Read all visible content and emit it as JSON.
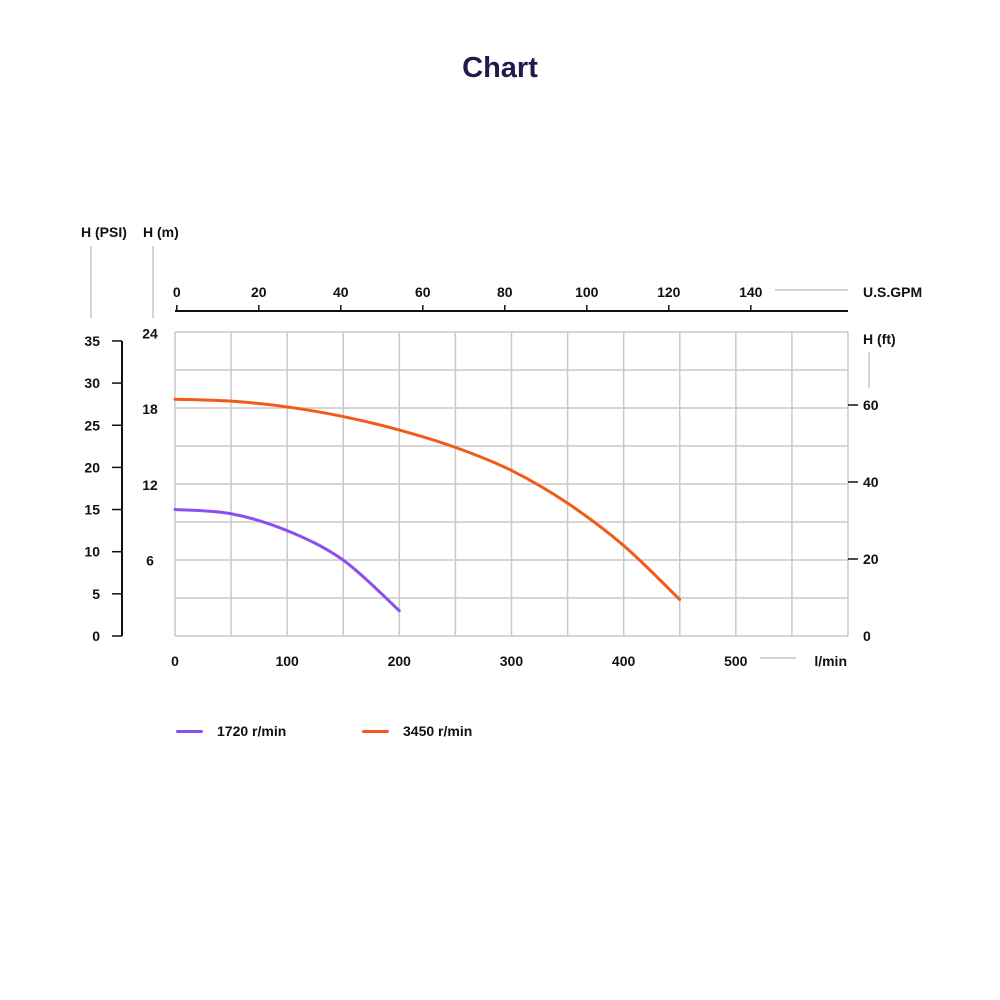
{
  "title": "Chart",
  "colors": {
    "series_1720": "#8b4ff0",
    "series_3450": "#f25a19",
    "grid": "#c9c9c9",
    "axis": "#111111",
    "title": "#1f1b4d"
  },
  "chart_data": {
    "type": "line",
    "title": "Chart",
    "x_axis": {
      "label": "l/min",
      "range": [
        0,
        600
      ],
      "ticks": [
        0,
        100,
        200,
        300,
        400,
        500
      ]
    },
    "x_axis_top": {
      "label": "U.S.GPM",
      "ticks": [
        0,
        20,
        40,
        60,
        80,
        100,
        120,
        140
      ]
    },
    "y_axis_psi": {
      "label": "H (PSI)",
      "range": [
        0,
        35
      ],
      "ticks": [
        0,
        5,
        10,
        15,
        20,
        25,
        30,
        35
      ]
    },
    "y_axis_m": {
      "label": "H (m)",
      "range": [
        0,
        24
      ],
      "ticks": [
        6,
        12,
        18,
        24
      ]
    },
    "y_axis_ft": {
      "label": "H (ft)",
      "ticks": [
        0,
        20,
        40,
        60
      ]
    },
    "grid": true,
    "legend_position": "bottom-left",
    "series": [
      {
        "name": "1720 r/min",
        "x": [
          0,
          50,
          100,
          150,
          200
        ],
        "y": [
          15,
          14.5,
          12.5,
          9,
          3
        ]
      },
      {
        "name": "3450 r/min",
        "x": [
          0,
          50,
          100,
          150,
          200,
          250,
          300,
          350,
          400,
          450
        ],
        "y": [
          61.5,
          61,
          59.5,
          57,
          53.5,
          49,
          43,
          34.5,
          23.5,
          9.5
        ]
      }
    ]
  }
}
